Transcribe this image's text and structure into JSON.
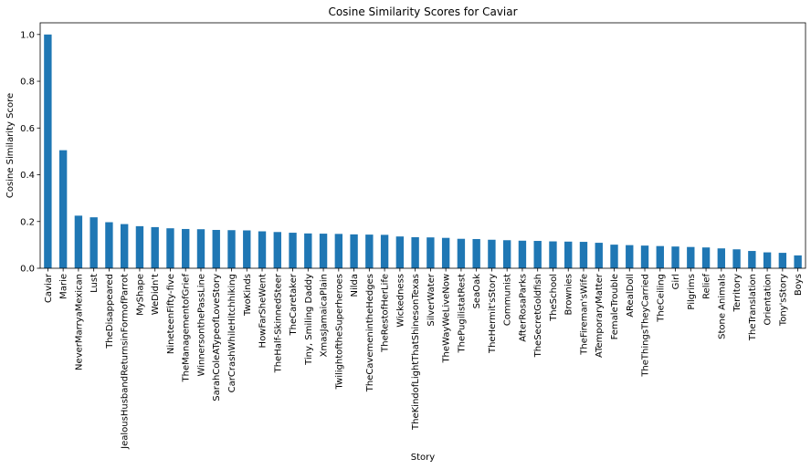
{
  "chart_data": {
    "type": "bar",
    "title": "Cosine Similarity Scores for Caviar",
    "xlabel": "Story",
    "ylabel": "Cosine Similarity Score",
    "ylim": [
      0,
      1.05
    ],
    "yticks": [
      "0.0",
      "0.2",
      "0.4",
      "0.6",
      "0.8",
      "1.0"
    ],
    "grid": false,
    "bar_color": "#1f77b4",
    "categories": [
      "Caviar",
      "Marie",
      "NeverMarryaMexican",
      "Lust",
      "TheDisappeared",
      "JealousHusbandReturnsinFormofParrot",
      "MyShape",
      "WeDidn't",
      "NineteenFifty-five",
      "TheManagementofGrief",
      "WinnersonthePassLine",
      "SarahColeATypeofLoveStory",
      "CarCrashWhileHitchhiking",
      "TwoKinds",
      "HowFarSheWent",
      "TheHalf-SkinnedSteer",
      "TheCaretaker",
      "Tiny, Smiling Daddy",
      "XmasJamaicaPlain",
      "TwilightoftheSuperheroes",
      "Nilda",
      "TheCavemenintheHedges",
      "TheRestofHerLife",
      "Wickedness",
      "TheKindofLightThatShinesonTexas",
      "SilverWater",
      "TheWayWeLiveNow",
      "ThePugilistatRest",
      "SeaOak",
      "TheHermit'sStory",
      "Communist",
      "AfterRosaParks",
      "TheSecretGoldfish",
      "TheSchool",
      "Brownies",
      "TheFireman'sWife",
      "ATemporaryMatter",
      "FemaleTrouble",
      "ARealDoll",
      "TheThingsTheyCarried",
      "TheCeiling",
      "Girl",
      "Pilgrims",
      "Relief",
      "Stone Animals",
      "Territory",
      "TheTranslation",
      "Orientation",
      "Tony'sStory",
      "Boys"
    ],
    "values": [
      1.0,
      0.505,
      0.225,
      0.218,
      0.197,
      0.189,
      0.18,
      0.176,
      0.171,
      0.168,
      0.167,
      0.164,
      0.163,
      0.162,
      0.158,
      0.155,
      0.152,
      0.149,
      0.148,
      0.147,
      0.145,
      0.144,
      0.143,
      0.136,
      0.133,
      0.132,
      0.13,
      0.126,
      0.125,
      0.122,
      0.12,
      0.118,
      0.117,
      0.115,
      0.114,
      0.113,
      0.109,
      0.101,
      0.099,
      0.097,
      0.095,
      0.093,
      0.091,
      0.089,
      0.085,
      0.081,
      0.074,
      0.068,
      0.066,
      0.055
    ]
  }
}
